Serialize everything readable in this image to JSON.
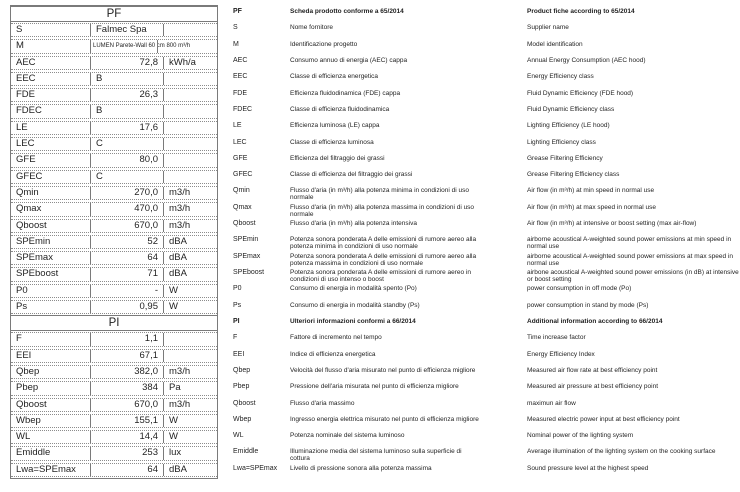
{
  "table": {
    "sections": [
      {
        "header": "PF",
        "rows": [
          {
            "code": "S",
            "value": "Falmec Spa",
            "unit": "",
            "align": "left"
          },
          {
            "code": "M",
            "value": "LUMEN Parete-Wall 60 cm 800 m³/h",
            "unit": "",
            "align": "left",
            "small": true
          },
          {
            "code": "AEC",
            "value": "72,8",
            "unit": "kWh/a",
            "align": "right"
          },
          {
            "code": "EEC",
            "value": "B",
            "unit": "",
            "align": "left"
          },
          {
            "code": "FDE",
            "value": "26,3",
            "unit": "",
            "align": "right"
          },
          {
            "code": "FDEC",
            "value": "B",
            "unit": "",
            "align": "left"
          },
          {
            "code": "LE",
            "value": "17,6",
            "unit": "",
            "align": "right"
          },
          {
            "code": "LEC",
            "value": "C",
            "unit": "",
            "align": "left"
          },
          {
            "code": "GFE",
            "value": "80,0",
            "unit": "",
            "align": "right"
          },
          {
            "code": "GFEC",
            "value": "C",
            "unit": "",
            "align": "left"
          },
          {
            "code": "Qmin",
            "value": "270,0",
            "unit": "m3/h",
            "align": "right"
          },
          {
            "code": "Qmax",
            "value": "470,0",
            "unit": "m3/h",
            "align": "right"
          },
          {
            "code": "Qboost",
            "value": "670,0",
            "unit": "m3/h",
            "align": "right"
          },
          {
            "code": "SPEmin",
            "value": "52",
            "unit": "dBA",
            "align": "right"
          },
          {
            "code": "SPEmax",
            "value": "64",
            "unit": "dBA",
            "align": "right"
          },
          {
            "code": "SPEboost",
            "value": "71",
            "unit": "dBA",
            "align": "right"
          },
          {
            "code": "P0",
            "value": "-",
            "unit": "W",
            "align": "right"
          },
          {
            "code": "Ps",
            "value": "0,95",
            "unit": "W",
            "align": "right"
          }
        ]
      },
      {
        "header": "PI",
        "rows": [
          {
            "code": "F",
            "value": "1,1",
            "unit": "",
            "align": "right"
          },
          {
            "code": "EEI",
            "value": "67,1",
            "unit": "",
            "align": "right"
          },
          {
            "code": "Qbep",
            "value": "382,0",
            "unit": "m3/h",
            "align": "right"
          },
          {
            "code": "Pbep",
            "value": "384",
            "unit": "Pa",
            "align": "right"
          },
          {
            "code": "Qboost",
            "value": "670,0",
            "unit": "m3/h",
            "align": "right"
          },
          {
            "code": "Wbep",
            "value": "155,1",
            "unit": "W",
            "align": "right"
          },
          {
            "code": "WL",
            "value": "14,4",
            "unit": "W",
            "align": "right"
          },
          {
            "code": "Emiddle",
            "value": "253",
            "unit": "lux",
            "align": "right"
          },
          {
            "code": "Lwa=SPEmax",
            "value": "64",
            "unit": "dBA",
            "align": "right"
          }
        ]
      }
    ]
  },
  "legend": [
    {
      "code": "PF",
      "bold": true,
      "it": "Scheda prodotto conforme a 65/2014",
      "en": "Product fiche according to 65/2014"
    },
    {
      "code": "S",
      "bold": false,
      "it": "Nome fornitore",
      "en": "Supplier name"
    },
    {
      "code": "M",
      "bold": false,
      "it": "Identificazione progetto",
      "en": "Model identification"
    },
    {
      "code": "AEC",
      "bold": false,
      "it": "Consumo annuo di energia (AEC) cappa",
      "en": "Annual Energy Consumption (AEC hood)"
    },
    {
      "code": "EEC",
      "bold": false,
      "it": "Classe di efficienza energetica",
      "en": "Energy Efficiency class"
    },
    {
      "code": "FDE",
      "bold": false,
      "it": "Efficienza fluidodinamica (FDE) cappa",
      "en": "Fluid Dynamic Efficiency (FDE hood)"
    },
    {
      "code": "FDEC",
      "bold": false,
      "it": "Classe di efficienza fluidodinamica",
      "en": "Fluid Dynamic Efficiency class"
    },
    {
      "code": "LE",
      "bold": false,
      "it": "Efficienza luminosa (LE) cappa",
      "en": "Lighting Efficiency (LE hood)"
    },
    {
      "code": "LEC",
      "bold": false,
      "it": "Classe di efficienza luminosa",
      "en": "Lighting Efficiency class"
    },
    {
      "code": "GFE",
      "bold": false,
      "it": "Efficienza del filtraggio dei grassi",
      "en": "Grease Filtering Efficiency"
    },
    {
      "code": "GFEC",
      "bold": false,
      "it": "Classe di efficienza del filtraggio dei grassi",
      "en": "Grease Filtering Efficiency class"
    },
    {
      "code": "Qmin",
      "bold": false,
      "it": "Flusso d'aria (in m³/h) alla potenza minima in condizioni di uso normale",
      "en": "Air flow (in m³/h) at min speed in normal use"
    },
    {
      "code": "Qmax",
      "bold": false,
      "it": "Flusso d'aria (in m³/h) alla potenza massima in condizioni di uso normale",
      "en": "Air flow (in m³/h) at max speed in normal use"
    },
    {
      "code": "Qboost",
      "bold": false,
      "it": "Flusso d'aria (in m³/h) alla potenza intensiva",
      "en": "Air flow (in m³/h) at intensive or boost setting (max air-flow)"
    },
    {
      "code": "SPEmin",
      "bold": false,
      "it": "Potenza sonora ponderata A delle emissioni di rumore aereo alla potenza minima in condizioni di uso normale",
      "en": "airborne acoustical A-weighted sound power emissions at min speed in normal use"
    },
    {
      "code": "SPEmax",
      "bold": false,
      "it": "Potenza sonora ponderata A delle emissioni di rumore aereo alla potenza massima in condizioni di uso normale",
      "en": "airborne acoustical A-weighted sound power emissions at max speed in normal use"
    },
    {
      "code": "SPEboost",
      "bold": false,
      "it": "Potenza sonora ponderata A delle emissioni di rumore aereo in condizioni di uso intenso o boost",
      "en": "airbone acoustical A-weighted sound power emissions (in dB) at intensive or boost setting"
    },
    {
      "code": "P0",
      "bold": false,
      "it": "Consumo di energia in modalità spento (Po)",
      "en": "power consumption in off mode (Po)"
    },
    {
      "code": "Ps",
      "bold": false,
      "it": "Consumo di energia in modalità standby (Ps)",
      "en": "power consumption in stand by mode (Ps)"
    },
    {
      "code": "PI",
      "bold": true,
      "it": "Ulteriori informazioni conformi a 66/2014",
      "en": "Additional information according to 66/2014"
    },
    {
      "code": "F",
      "bold": false,
      "it": "Fattore di incremento nel tempo",
      "en": "Time increase factor"
    },
    {
      "code": "EEI",
      "bold": false,
      "it": "Indice di efficienza energetica",
      "en": "Energy Efficiency Index"
    },
    {
      "code": "Qbep",
      "bold": false,
      "it": "Velocità del flusso d'aria misurato nel punto di efficienza migliore",
      "en": "Measured air flow rate at best efficiency point"
    },
    {
      "code": "Pbep",
      "bold": false,
      "it": "Pressione dell'aria misurata nel punto di efficienza migliore",
      "en": "Measured air pressure at best efficiency point"
    },
    {
      "code": "Qboost",
      "bold": false,
      "it": "Flusso d'aria massimo",
      "en": "maximun air flow"
    },
    {
      "code": "Wbep",
      "bold": false,
      "it": "Ingresso energia elettrica misurato nel punto di efficienza migliore",
      "en": "Measured electric power input at best efficiency point"
    },
    {
      "code": "WL",
      "bold": false,
      "it": "Potenza nominale del sistema luminoso",
      "en": "Nominal power of the lighting system"
    },
    {
      "code": "Emiddle",
      "bold": false,
      "it": "Illuminazione media del sistema luminoso sulla superficie di cottura",
      "en": "Average illumination of the lighting system on the cooking surface"
    },
    {
      "code": "Lwa=SPEmax",
      "bold": false,
      "it": "Livello di pressione sonora alla potenza massima",
      "en": "Sound pressure level at the highest speed"
    }
  ]
}
